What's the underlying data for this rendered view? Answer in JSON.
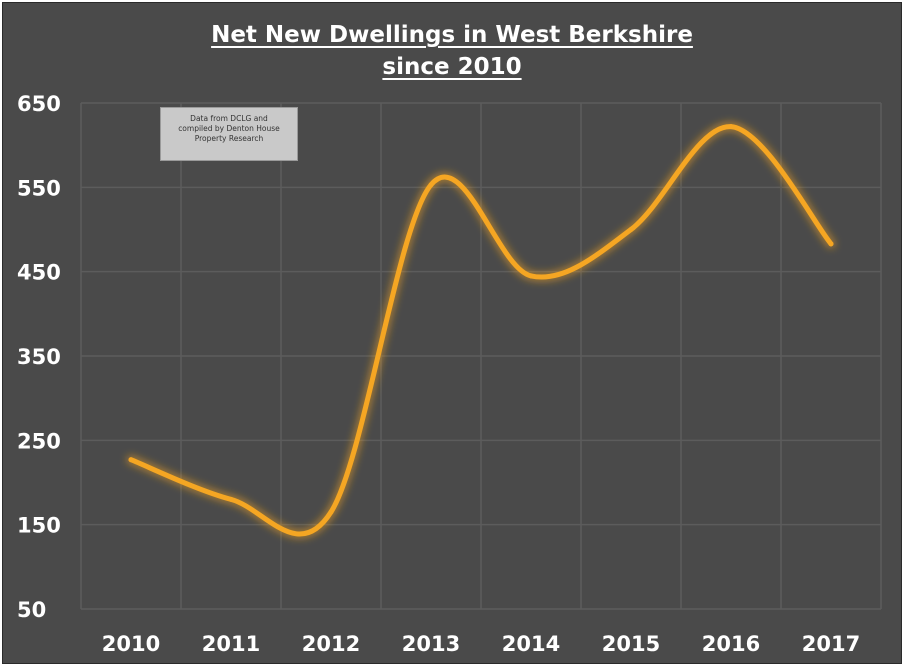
{
  "chart_data": {
    "type": "line",
    "title": "Net New Dwellings in West Berkshire",
    "subtitle": "since 2010",
    "xlabel": "",
    "ylabel": "",
    "categories": [
      "2010",
      "2011",
      "2012",
      "2013",
      "2014",
      "2015",
      "2016",
      "2017"
    ],
    "series": [
      {
        "values": [
          227,
          180,
          165,
          553,
          445,
          500,
          622,
          483
        ]
      }
    ],
    "ylim": [
      50,
      650
    ],
    "yticks": [
      "650",
      "550",
      "450",
      "350",
      "250",
      "150",
      "50"
    ],
    "grid": true,
    "legend": "none",
    "line_color": "#f5a623",
    "background_color": "#4a4a4a",
    "annotation": {
      "lines": [
        "Data from DCLG and",
        "compiled by Denton House",
        "Property Research"
      ]
    }
  }
}
